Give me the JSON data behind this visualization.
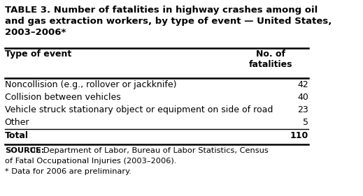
{
  "title": "TABLE 3. Number of fatalities in highway crashes among oil\nand gas extraction workers, by type of event — United States,\n2003–2006*",
  "col_header_left": "Type of event",
  "col_header_right": "No. of\nfatalities",
  "rows": [
    {
      "label": "Noncollision (e.g., rollover or jackknife)",
      "value": "42"
    },
    {
      "label": "Collision between vehicles",
      "value": "40"
    },
    {
      "label": "Vehicle struck stationary object or equipment on side of road",
      "value": "23"
    },
    {
      "label": "Other",
      "value": "5"
    }
  ],
  "total_label": "Total",
  "total_value": "110",
  "source_bold": "SOURCE:",
  "source_rest_line1": " US Department of Labor, Bureau of Labor Statistics, Census",
  "source_line2": "of Fatal Occupational Injuries (2003–2006).",
  "source_line3": "* Data for 2006 are preliminary.",
  "bg_color": "#ffffff",
  "text_color": "#000000",
  "font_size_title": 9.5,
  "font_size_body": 9.0,
  "font_size_source": 8.2
}
